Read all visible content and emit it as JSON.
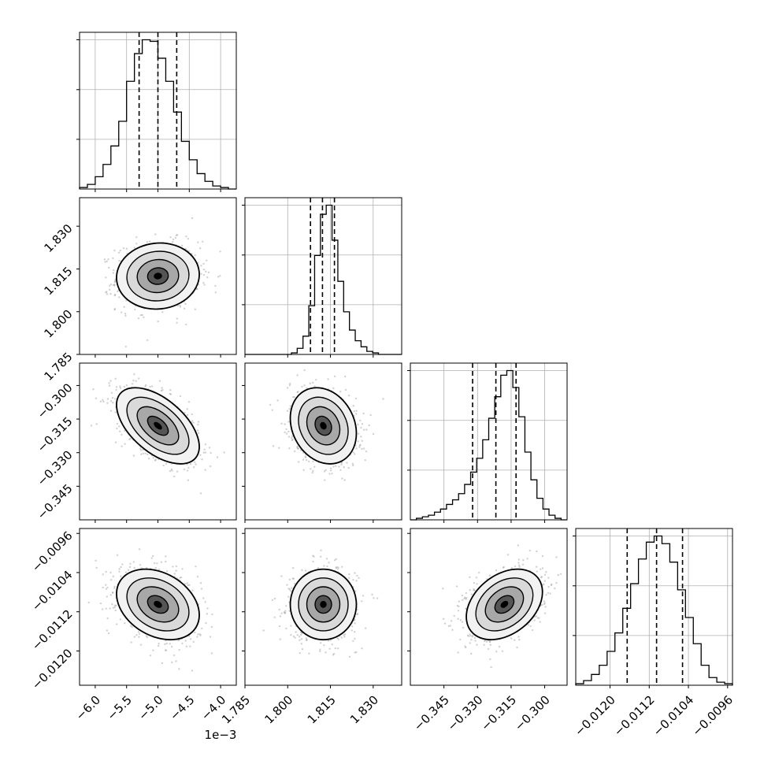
{
  "chart_data": {
    "type": "corner",
    "title": "",
    "params": [
      {
        "range": [
          -6.25,
          -3.75
        ],
        "ticks": [
          -6.0,
          -5.5,
          -5.0,
          -4.5,
          -4.0
        ],
        "tick_labels": [
          "−6.0",
          "−5.5",
          "−5.0",
          "−4.5",
          "−4.0"
        ],
        "offset_text": "1e−3",
        "quantiles": [
          -5.3,
          -5.0,
          -4.7
        ],
        "hist": [
          1,
          3,
          8,
          16,
          28,
          44,
          70,
          88,
          97,
          96,
          85,
          70,
          50,
          31,
          19,
          10,
          5,
          2,
          1,
          0
        ],
        "grid": [
          -6.0,
          -5.5,
          -5.0,
          -4.5,
          -4.0
        ]
      },
      {
        "range": [
          1.785,
          1.84
        ],
        "ticks": [
          1.785,
          1.8,
          1.815,
          1.83
        ],
        "tick_labels": [
          "1.785",
          "1.800",
          "1.815",
          "1.830"
        ],
        "quantiles": [
          1.808,
          1.8122,
          1.8164
        ],
        "hist": [
          0,
          0,
          0,
          0,
          0,
          0,
          0,
          0,
          1,
          4,
          12,
          32,
          65,
          92,
          98,
          75,
          48,
          28,
          16,
          9,
          5,
          2,
          1,
          0,
          0,
          0,
          0
        ],
        "grid": [
          1.785,
          1.8,
          1.815,
          1.83
        ]
      },
      {
        "range": [
          -0.36,
          -0.29
        ],
        "ticks": [
          -0.345,
          -0.33,
          -0.315,
          -0.3
        ],
        "tick_labels": [
          "−0.345",
          "−0.330",
          "−0.315",
          "−0.300"
        ],
        "quantiles": [
          -0.3322,
          -0.3218,
          -0.3128
        ],
        "hist": [
          0,
          1,
          2,
          3,
          5,
          7,
          10,
          13,
          17,
          23,
          31,
          40,
          52,
          66,
          80,
          94,
          97,
          86,
          67,
          44,
          26,
          14,
          7,
          3,
          1,
          0
        ],
        "grid": [
          -0.345,
          -0.33,
          -0.315,
          -0.3
        ]
      },
      {
        "range": [
          -0.0127,
          -0.0095
        ],
        "ticks": [
          -0.012,
          -0.0112,
          -0.0104,
          -0.0096
        ],
        "tick_labels": [
          "−0.0120",
          "−0.0112",
          "−0.0104",
          "−0.0096"
        ],
        "quantiles": [
          -0.01165,
          -0.01105,
          -0.01052
        ],
        "hist": [
          1,
          3,
          7,
          13,
          22,
          34,
          50,
          66,
          82,
          93,
          97,
          92,
          80,
          62,
          44,
          27,
          13,
          5,
          2,
          1
        ],
        "grid": [
          -0.012,
          -0.0112,
          -0.0104,
          -0.0096
        ]
      }
    ],
    "pairs": [
      {
        "row": 1,
        "col": 0,
        "center": [
          -5.0,
          1.8125
        ],
        "sd": [
          0.33,
          0.0058
        ],
        "corr": 0.05
      },
      {
        "row": 2,
        "col": 0,
        "center": [
          -5.0,
          -0.318
        ],
        "sd": [
          0.33,
          0.0085
        ],
        "corr": -0.55
      },
      {
        "row": 2,
        "col": 1,
        "center": [
          1.8125,
          -0.318
        ],
        "sd": [
          0.0058,
          0.0085
        ],
        "corr": -0.2
      },
      {
        "row": 3,
        "col": 0,
        "center": [
          -5.0,
          -0.01105
        ],
        "sd": [
          0.33,
          0.00036
        ],
        "corr": -0.3
      },
      {
        "row": 3,
        "col": 1,
        "center": [
          1.8125,
          -0.01105
        ],
        "sd": [
          0.0058,
          0.00036
        ],
        "corr": 0.0
      },
      {
        "row": 3,
        "col": 2,
        "center": [
          -0.318,
          -0.01105
        ],
        "sd": [
          0.0085,
          0.00036
        ],
        "corr": 0.35
      }
    ],
    "y_tick_labels_shown_for_rows": [
      1,
      2,
      3
    ],
    "x_tick_labels_shown_for_cols": [
      0,
      1,
      2,
      3
    ],
    "grid": true
  }
}
